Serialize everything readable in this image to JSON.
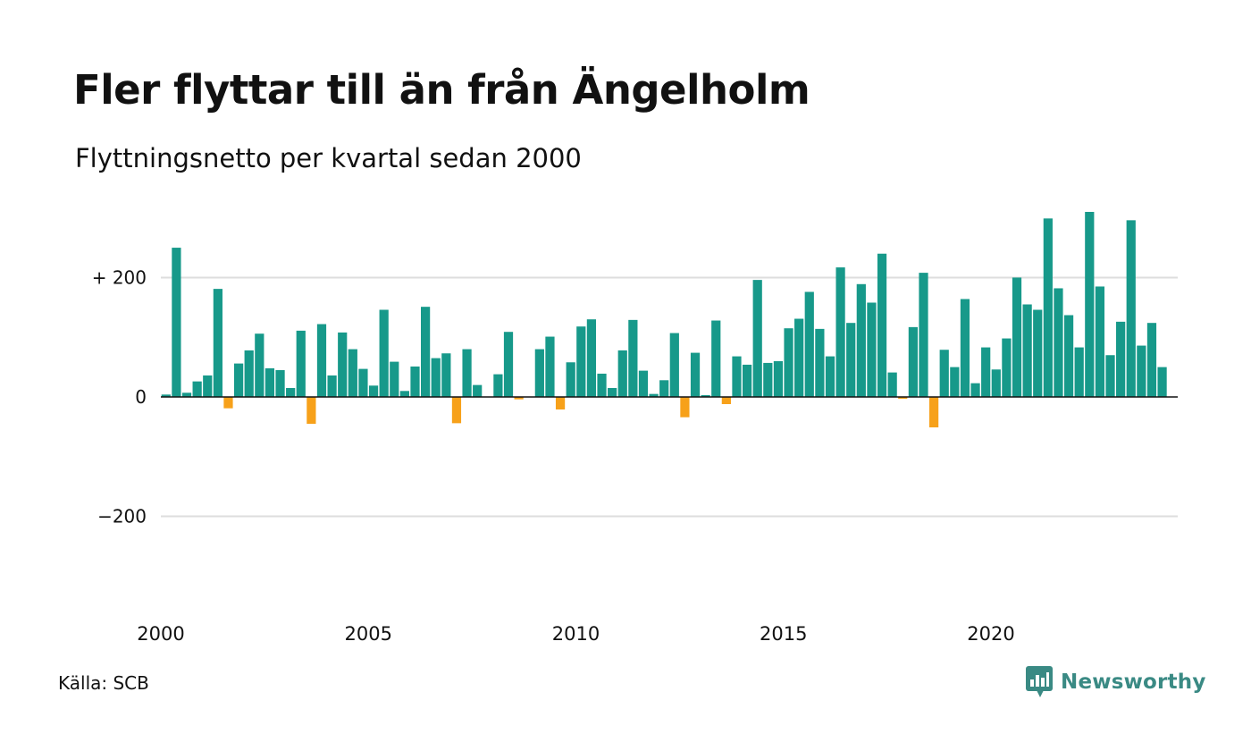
{
  "header": {
    "title": "Fler flyttar till än från Ängelholm",
    "subtitle": "Flyttningsnetto per kvartal sedan 2000"
  },
  "footer": {
    "source": "Källa: SCB",
    "brand": "Newsworthy",
    "brand_color": "#3a8a84"
  },
  "chart_data": {
    "type": "bar",
    "x_start": 2000,
    "x_step": 0.25,
    "xlim": [
      2000,
      2024.5
    ],
    "ylim": [
      -340,
      310
    ],
    "yticks": [
      {
        "value": 200,
        "label": "+ 200"
      },
      {
        "value": 0,
        "label": "0"
      },
      {
        "value": -200,
        "label": "−200"
      }
    ],
    "xticks": [
      {
        "value": 2000,
        "label": "2000"
      },
      {
        "value": 2005,
        "label": "2005"
      },
      {
        "value": 2010,
        "label": "2010"
      },
      {
        "value": 2015,
        "label": "2015"
      },
      {
        "value": 2020,
        "label": "2020"
      }
    ],
    "grid": true,
    "positive_color": "#17998a",
    "negative_color": "#f7a11a",
    "values": [
      4,
      250,
      7,
      26,
      36,
      181,
      -19,
      56,
      78,
      106,
      48,
      45,
      15,
      111,
      -45,
      122,
      36,
      108,
      80,
      47,
      19,
      146,
      59,
      10,
      51,
      151,
      65,
      73,
      -44,
      80,
      20,
      0,
      38,
      109,
      -4,
      0,
      80,
      101,
      -21,
      58,
      118,
      130,
      39,
      15,
      78,
      129,
      44,
      5,
      28,
      107,
      -34,
      74,
      3,
      128,
      -12,
      68,
      54,
      196,
      57,
      60,
      115,
      131,
      176,
      114,
      68,
      217,
      124,
      189,
      158,
      240,
      41,
      -3,
      117,
      208,
      -51,
      79,
      50,
      164,
      23,
      83,
      46,
      98,
      200,
      155,
      146,
      299,
      182,
      137,
      83,
      310,
      185,
      70,
      126,
      296,
      86,
      124,
      50
    ]
  }
}
